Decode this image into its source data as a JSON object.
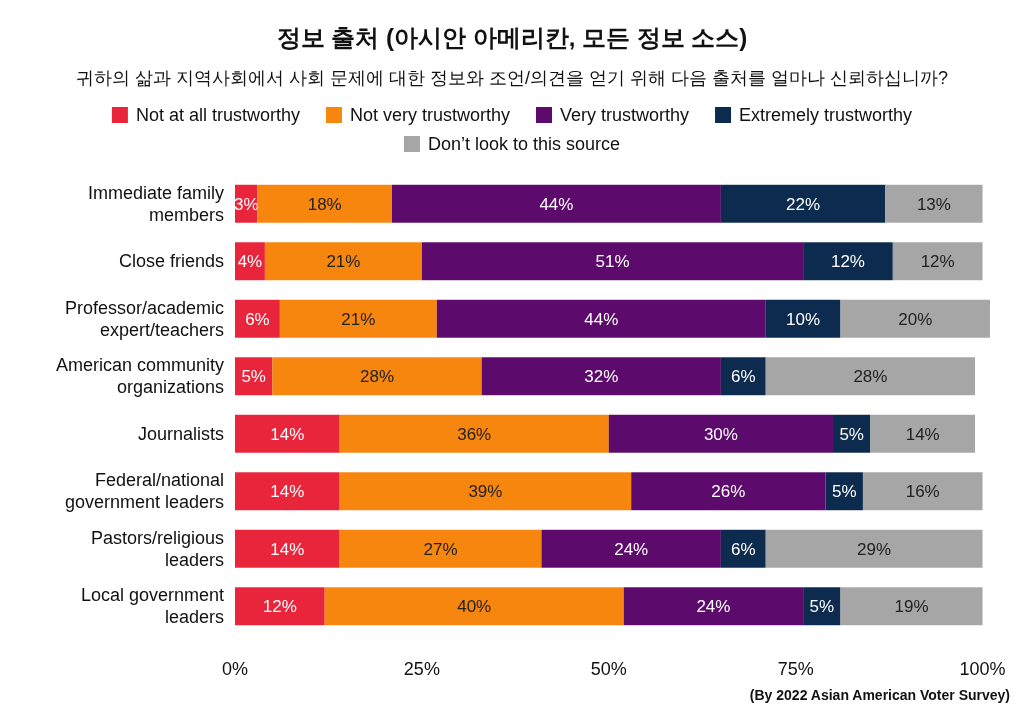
{
  "chart_data": {
    "type": "bar",
    "orientation": "horizontal",
    "stacked": true,
    "title": "정보 출처 (아시안 아메리칸, 모든 정보 소스)",
    "subtitle": "귀하의 삶과 지역사회에서 사회 문제에 대한 정보와 조언/의견을 얻기 위해 다음 출처를 얼마나 신뢰하십니까?",
    "categories": [
      "Immediate family members",
      "Close friends",
      "Professor/academic expert/teachers",
      "American community organizations",
      "Journalists",
      "Federal/national government leaders",
      "Pastors/religious leaders",
      "Local government leaders"
    ],
    "series": [
      {
        "name": "Not at all trustworthy",
        "color": "#e8253a",
        "values": [
          3,
          4,
          6,
          5,
          14,
          14,
          14,
          12
        ],
        "value_labels": [
          "3%",
          "4%",
          "6%",
          "5%",
          "14%",
          "14%",
          "14%",
          "12%"
        ]
      },
      {
        "name": "Not very trustworthy",
        "color": "#f7860f",
        "values": [
          18,
          21,
          21,
          28,
          36,
          39,
          27,
          40
        ],
        "value_labels": [
          "18%",
          "21%",
          "21%",
          "28%",
          "36%",
          "39%",
          "27%",
          "40%"
        ]
      },
      {
        "name": "Very trustworthy",
        "color": "#5c0a6b",
        "values": [
          44,
          51,
          44,
          32,
          30,
          26,
          24,
          24
        ],
        "value_labels": [
          "44%",
          "51%",
          "44%",
          "32%",
          "30%",
          "26%",
          "24%",
          "24%"
        ]
      },
      {
        "name": "Extremely trustworthy",
        "color": "#0d2b4e",
        "values": [
          22,
          12,
          10,
          6,
          5,
          5,
          6,
          5
        ],
        "value_labels": [
          "22%",
          "12%",
          "10%",
          "6%",
          "5%",
          "5%",
          "6%",
          "5%"
        ]
      },
      {
        "name": "Don’t look to this source",
        "color": "#a6a6a6",
        "values": [
          13,
          12,
          20,
          28,
          14,
          16,
          29,
          19
        ],
        "value_labels": [
          "13%",
          "12%",
          "20%",
          "28%",
          "14%",
          "16%",
          "29%",
          "19%"
        ]
      }
    ],
    "xlim": [
      0,
      101
    ],
    "xticks": [
      {
        "value": 0,
        "label": "0%"
      },
      {
        "value": 25,
        "label": "25%"
      },
      {
        "value": 50,
        "label": "50%"
      },
      {
        "value": 75,
        "label": "75%"
      },
      {
        "value": 100,
        "label": "100%"
      }
    ],
    "legend": "top",
    "grid": false,
    "annotations": [
      "(By 2022 Asian American Voter Survey)"
    ]
  }
}
